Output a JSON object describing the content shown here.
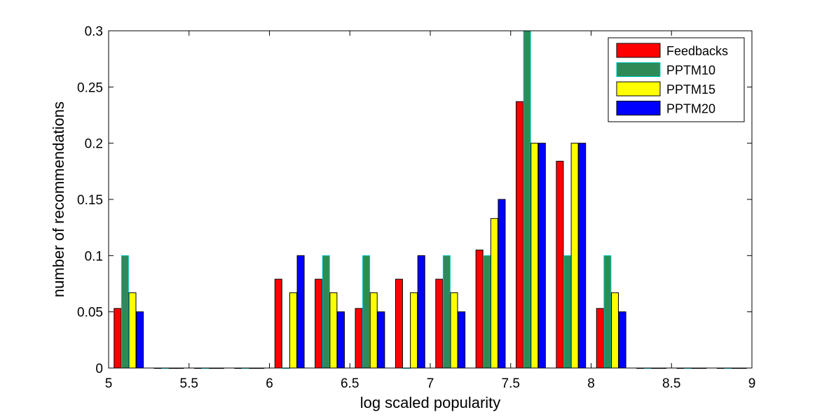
{
  "chart_data": {
    "type": "bar",
    "title": "",
    "xlabel": "log scaled popularity",
    "ylabel": "number of recommendations",
    "xlim": [
      5,
      9
    ],
    "ylim": [
      0,
      0.3
    ],
    "x_ticks": [
      "5",
      "5.5",
      "6",
      "6.5",
      "7",
      "7.5",
      "8",
      "8.5",
      "9"
    ],
    "y_ticks": [
      "0",
      "0.05",
      "0.1",
      "0.15",
      "0.2",
      "0.25",
      "0.3"
    ],
    "legend_position": "top-right",
    "grid": false,
    "bin_centers": [
      5.125,
      5.375,
      5.625,
      5.875,
      6.125,
      6.375,
      6.625,
      6.875,
      7.125,
      7.375,
      7.625,
      7.875,
      8.125,
      8.375,
      8.625,
      8.875
    ],
    "series": [
      {
        "name": "Feedbacks",
        "color": "#ff0000",
        "values": [
          0.053,
          0,
          0,
          0,
          0.079,
          0.079,
          0.053,
          0.079,
          0.079,
          0.105,
          0.237,
          0.184,
          0.053,
          0,
          0,
          0
        ]
      },
      {
        "name": "PPTM10",
        "color": "#2e8b57",
        "edge": "#00c8c8",
        "values": [
          0.1,
          0,
          0,
          0,
          0,
          0.1,
          0.1,
          0,
          0.1,
          0.1,
          0.3,
          0.1,
          0.1,
          0,
          0,
          0
        ]
      },
      {
        "name": "PPTM15",
        "color": "#ffff00",
        "values": [
          0.067,
          0,
          0,
          0,
          0.067,
          0.067,
          0.067,
          0.067,
          0.067,
          0.133,
          0.2,
          0.2,
          0.067,
          0,
          0,
          0
        ]
      },
      {
        "name": "PPTM20",
        "color": "#0000ff",
        "values": [
          0.05,
          0,
          0,
          0,
          0.1,
          0.05,
          0.05,
          0.1,
          0.05,
          0.15,
          0.2,
          0.2,
          0.05,
          0,
          0,
          0
        ]
      }
    ]
  }
}
